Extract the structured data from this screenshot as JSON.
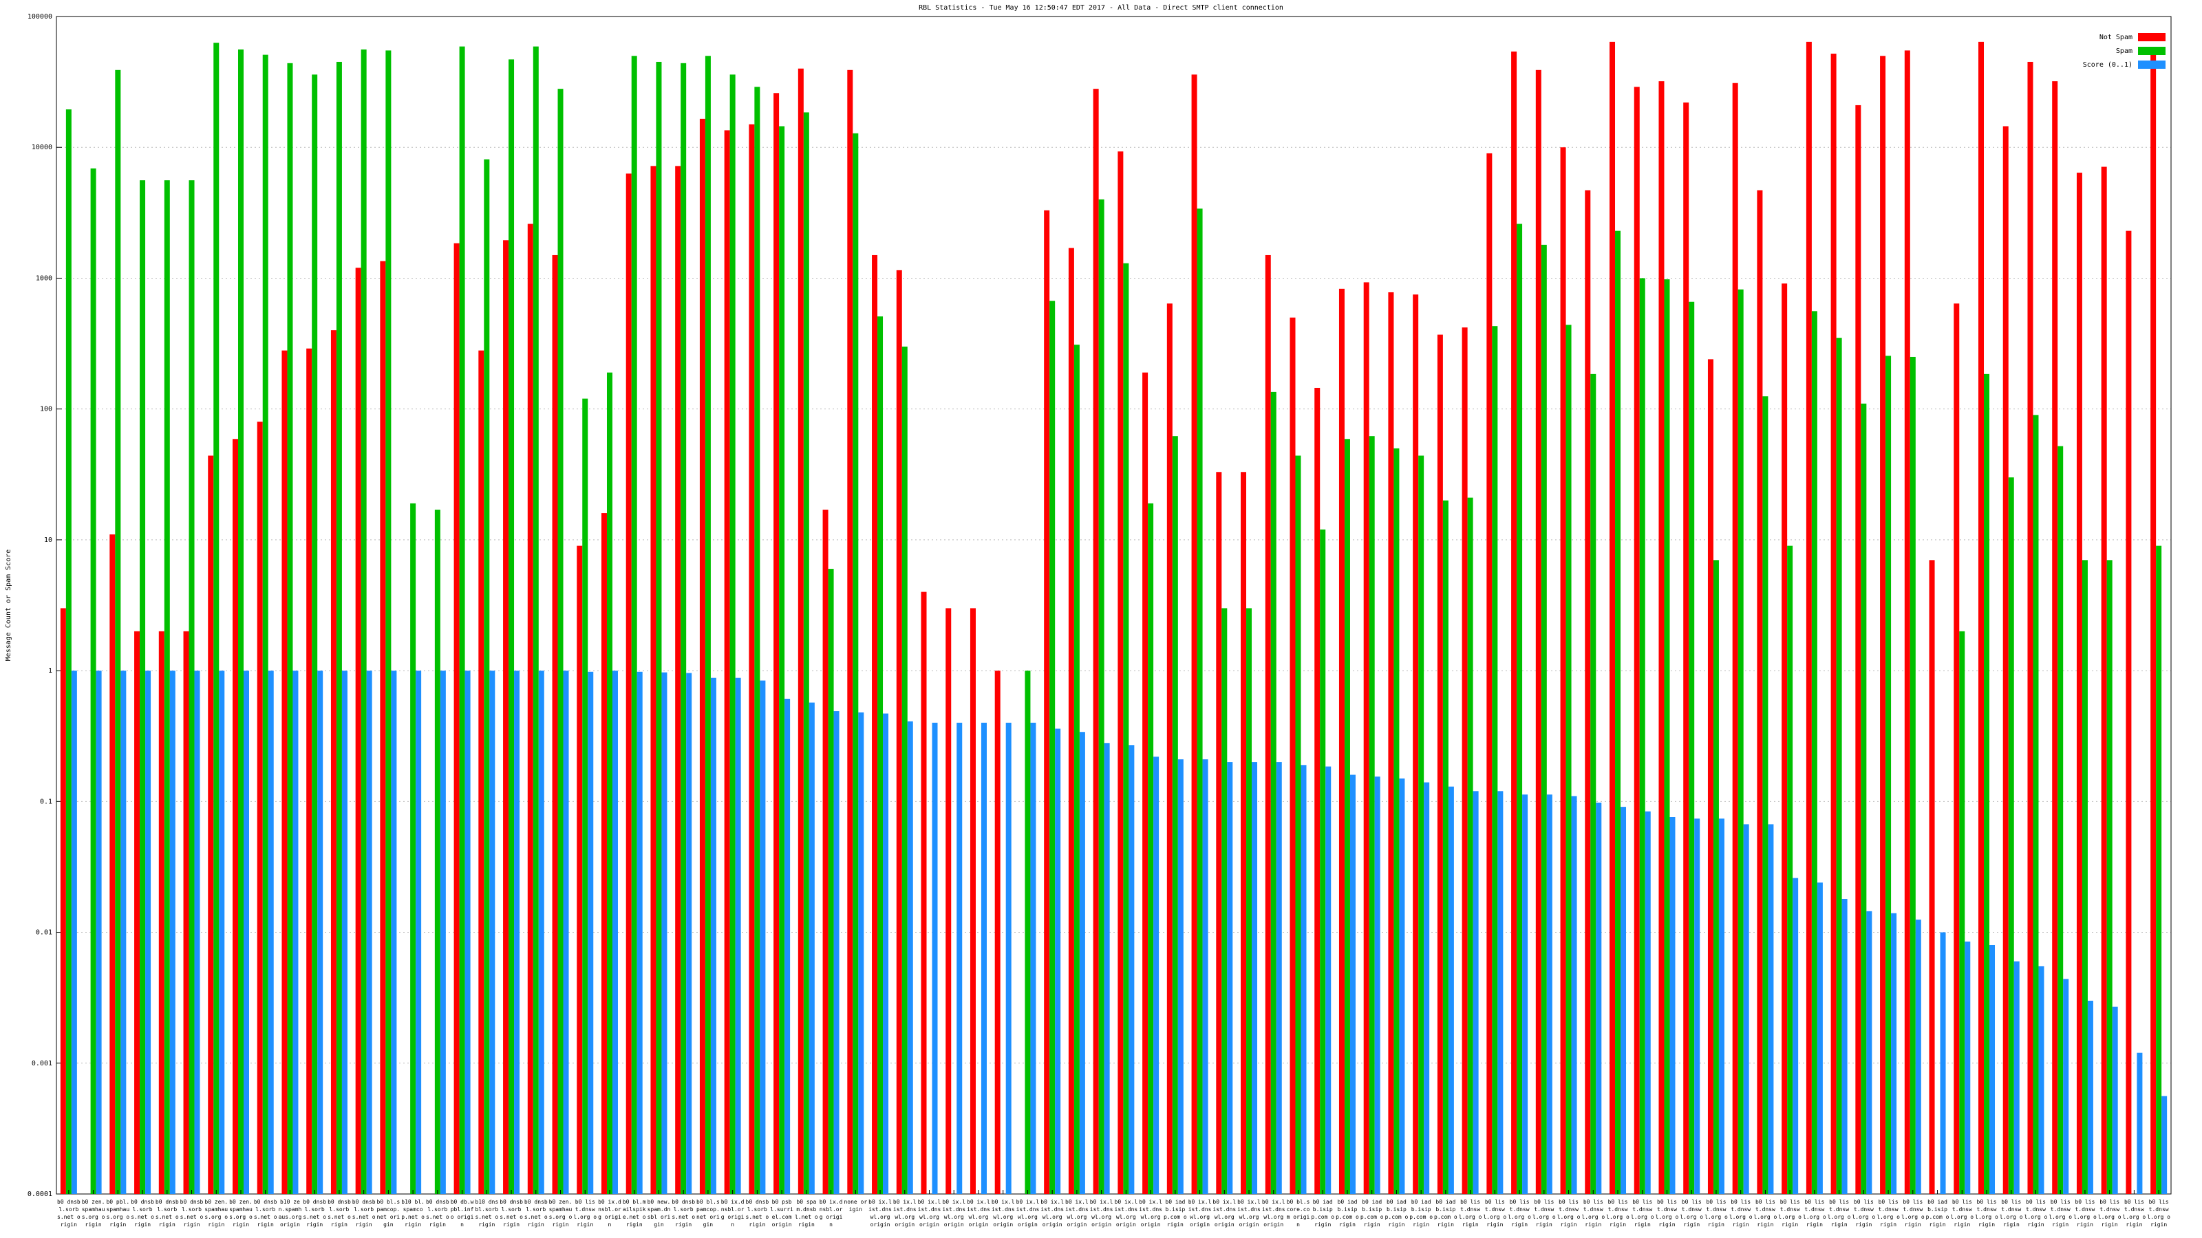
{
  "chart_data": {
    "type": "bar",
    "title": "RBL Statistics - Tue May 16 12:50:47 EDT 2017 - All Data - Direct SMTP client connection",
    "y_label": "Message Count or Spam Score",
    "log_scale": true,
    "grid": true,
    "legend": "top-right",
    "ylim": [
      0.0001,
      100000
    ],
    "yticks": [
      0.0001,
      0.001,
      0.01,
      0.1,
      1,
      10,
      100,
      1000,
      10000,
      100000
    ],
    "categories": [
      "b0 dnsbl.sorbs.net origin",
      "b0 zen.spamhaus.org origin",
      "b0 pbl.spamhaus.org origin",
      "b0 dnsbl.sorbs.net origin",
      "b0 dnsbl.sorbs.net origin",
      "b0 dnsbl.sorbs.net origin",
      "b0 zen.spamhaus.org origin",
      "b0 zen.spamhaus.org origin",
      "b0 dnsbl.sorbs.net origin",
      "b10 zen.spamhaus.org origin",
      "b0 dnsbl.sorbs.net origin",
      "b0 dnsbl.sorbs.net origin",
      "b0 dnsbl.sorbs.net origin",
      "b0 bl.spamcop.net origin",
      "b10 bl.spamcop.net origin",
      "b0 dnsbl.sorbs.net origin",
      "b0 db.wpbl.info origin",
      "b10 dnsbl.sorbs.net origin",
      "b0 dnsbl.sorbs.net origin",
      "b0 dnsbl.sorbs.net origin",
      "b0 zen.spamhaus.org origin",
      "b0 list.dnswl.org origin",
      "b0 ix.dnsbl.org origin",
      "b0 bl.mailspike.net origin",
      "b0 new.spam.dnsbl origin",
      "b0 dnsbl.sorbs.net origin",
      "b0 bl.spamcop.net origin",
      "b0 ix.dnsbl.org origin",
      "b0 dnsbl.sorbs.net origin",
      "b0 psbl.surriel.com origin",
      "b0 spam.dnsbl.net origin",
      "b0 ix.dnsbl.org origin",
      "none origin",
      "b0 ix.list.dnswl.org origin",
      "b0 ix.list.dnswl.org origin",
      "b0 ix.list.dnswl.org origin",
      "b0 ix.list.dnswl.org origin",
      "b0 ix.list.dnswl.org origin",
      "b0 ix.list.dnswl.org origin",
      "b0 ix.list.dnswl.org origin",
      "b0 ix.list.dnswl.org origin",
      "b0 ix.list.dnswl.org origin",
      "b0 ix.list.dnswl.org origin",
      "b0 ix.list.dnswl.org origin",
      "b0 ix.list.dnswl.org origin",
      "b0 iadb.isipp.com origin",
      "b0 ix.list.dnswl.org origin",
      "b0 ix.list.dnswl.org origin",
      "b0 ix.list.dnswl.org origin",
      "b0 ix.list.dnswl.org origin",
      "b0 bl.score.com origin",
      "b0 iadb.isipp.com origin",
      "b0 iadb.isipp.com origin",
      "b0 iadb.isipp.com origin",
      "b0 iadb.isipp.com origin",
      "b0 iadb.isipp.com origin",
      "b0 iadb.isipp.com origin",
      "b0 list.dnswl.org origin",
      "b0 list.dnswl.org origin",
      "b0 list.dnswl.org origin",
      "b0 list.dnswl.org origin",
      "b0 list.dnswl.org origin",
      "b0 list.dnswl.org origin",
      "b0 list.dnswl.org origin",
      "b0 list.dnswl.org origin",
      "b0 list.dnswl.org origin",
      "b0 list.dnswl.org origin",
      "b0 list.dnswl.org origin",
      "b0 list.dnswl.org origin",
      "b0 list.dnswl.org origin",
      "b0 list.dnswl.org origin",
      "b0 list.dnswl.org origin",
      "b0 list.dnswl.org origin",
      "b0 list.dnswl.org origin",
      "b0 list.dnswl.org origin",
      "b0 list.dnswl.org origin",
      "b0 iadb.isipp.com origin",
      "b0 list.dnswl.org origin",
      "b0 list.dnswl.org origin",
      "b0 list.dnswl.org origin",
      "b0 list.dnswl.org origin",
      "b0 list.dnswl.org origin",
      "b0 list.dnswl.org origin",
      "b0 list.dnswl.org origin",
      "b0 list.dnswl.org origin",
      "b0 list.dnswl.org origin"
    ],
    "series": [
      {
        "name": "Not Spam",
        "color": "#ff0000",
        "values": [
          3,
          null,
          11,
          2,
          2,
          2,
          44,
          59,
          80,
          280,
          290,
          400,
          1200,
          1350,
          null,
          null,
          1850,
          280,
          1950,
          2600,
          1500,
          9,
          16,
          6300,
          7200,
          7200,
          16500,
          13500,
          15000,
          26000,
          40000,
          17,
          39000,
          1500,
          1150,
          4,
          3,
          3,
          1,
          null,
          3300,
          1700,
          28000,
          9300,
          190,
          640,
          36000,
          33,
          33,
          1500,
          500,
          145,
          830,
          930,
          780,
          750,
          370,
          420,
          9000,
          54000,
          39000,
          10000,
          4700,
          64000,
          29000,
          32000,
          22000,
          240,
          31000,
          4700,
          910,
          64000,
          52000,
          21000,
          50000,
          55000,
          7,
          640,
          64000,
          14500,
          45000,
          32000,
          6400,
          7100,
          2300,
          57000
        ]
      },
      {
        "name": "Spam",
        "color": "#00c000",
        "values": [
          19500,
          6900,
          39000,
          5600,
          5600,
          5600,
          63000,
          56000,
          51000,
          44000,
          36000,
          45000,
          56000,
          55000,
          19,
          17,
          59000,
          8100,
          47000,
          59000,
          28000,
          120,
          190,
          50000,
          45000,
          44000,
          50000,
          36000,
          29000,
          14500,
          18500,
          6,
          12800,
          510,
          300,
          null,
          null,
          null,
          null,
          1,
          670,
          310,
          4000,
          1300,
          19,
          62,
          3400,
          3,
          3,
          135,
          44,
          12,
          59,
          62,
          50,
          44,
          20,
          21,
          430,
          2600,
          1800,
          440,
          185,
          2300,
          1000,
          980,
          660,
          7,
          820,
          125,
          9,
          560,
          350,
          110,
          255,
          250,
          null,
          2,
          185,
          30,
          90,
          52,
          7,
          7,
          null,
          9
        ]
      },
      {
        "name": "Score (0..1)",
        "color": "#1e90ff",
        "values": [
          1,
          1,
          1,
          1,
          1,
          1,
          1,
          1,
          1,
          1,
          1,
          1,
          1,
          1,
          1,
          1,
          1,
          1,
          1,
          1,
          1,
          0.98,
          1,
          0.98,
          0.97,
          0.96,
          0.88,
          0.88,
          0.84,
          0.61,
          0.57,
          0.49,
          0.48,
          0.47,
          0.41,
          0.4,
          0.4,
          0.4,
          0.4,
          0.4,
          0.36,
          0.34,
          0.28,
          0.27,
          0.22,
          0.21,
          0.21,
          0.2,
          0.2,
          0.2,
          0.19,
          0.185,
          0.16,
          0.155,
          0.15,
          0.14,
          0.13,
          0.12,
          0.12,
          0.113,
          0.113,
          0.11,
          0.098,
          0.091,
          0.084,
          0.076,
          0.074,
          0.074,
          0.067,
          0.067,
          0.026,
          0.024,
          0.018,
          0.0145,
          0.014,
          0.0125,
          0.01,
          0.0085,
          0.008,
          0.006,
          0.0055,
          0.0044,
          0.003,
          0.0027,
          0.0012,
          0.00056
        ]
      }
    ]
  }
}
